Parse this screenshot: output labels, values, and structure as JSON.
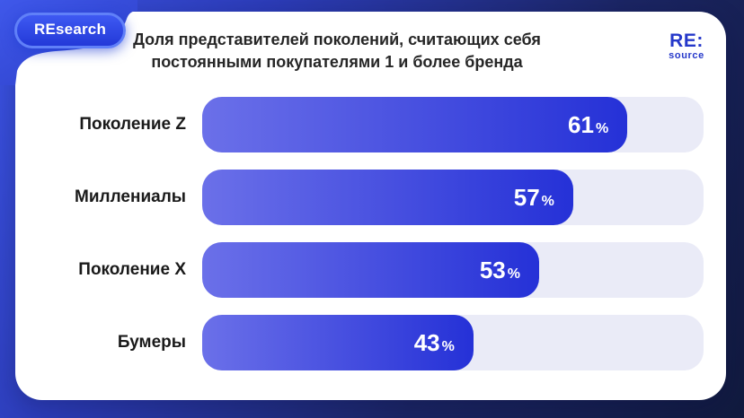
{
  "badge": {
    "label": "REsearch"
  },
  "logo": {
    "line1": "RE:",
    "line2": "source"
  },
  "header": {
    "title_line1": "Доля представителей поколений, считающих себя",
    "title_line2": "постоянными покупателями 1 и более бренда"
  },
  "chart_data": {
    "type": "bar",
    "orientation": "horizontal",
    "title": "Доля представителей поколений, считающих себя постоянными покупателями 1 и более бренда",
    "categories": [
      "Поколение Z",
      "Миллениалы",
      "Поколение X",
      "Бумеры"
    ],
    "values": [
      61,
      57,
      53,
      43
    ],
    "unit": "%",
    "xlim": [
      0,
      100
    ],
    "grid": false,
    "legend": "none",
    "value_labels": "inside-bar-right",
    "bar_display_pct": [
      84.8,
      74.0,
      67.2,
      54.1
    ],
    "colors": {
      "bar_gradient_start": "#6b70e9",
      "bar_gradient_end": "#2531d7",
      "track": "#eaebf7",
      "value_text": "#ffffff",
      "label_text": "#1a1a1a",
      "title_text": "#262626",
      "logo_blue": "#2538ca",
      "badge_fill": "#2c44e6",
      "badge_border": "#6080f8",
      "background_start": "#3c54e4",
      "background_end": "#111a3e"
    }
  }
}
